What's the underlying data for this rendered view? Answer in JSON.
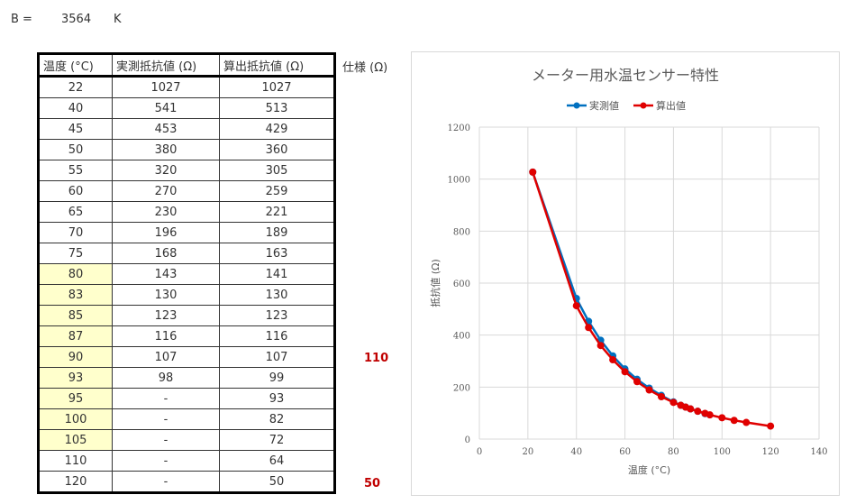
{
  "b_constant": {
    "label": "B =",
    "value": "3564",
    "unit": "K"
  },
  "table": {
    "headers": [
      "温度 (°C)",
      "実測抵抗値 (Ω)",
      "算出抵抗値 (Ω)"
    ],
    "spec_header": "仕様 (Ω)",
    "rows": [
      {
        "temp": "22",
        "measured": "1027",
        "calc": "1027",
        "hl": false
      },
      {
        "temp": "40",
        "measured": "541",
        "calc": "513",
        "hl": false
      },
      {
        "temp": "45",
        "measured": "453",
        "calc": "429",
        "hl": false
      },
      {
        "temp": "50",
        "measured": "380",
        "calc": "360",
        "hl": false
      },
      {
        "temp": "55",
        "measured": "320",
        "calc": "305",
        "hl": false
      },
      {
        "temp": "60",
        "measured": "270",
        "calc": "259",
        "hl": false
      },
      {
        "temp": "65",
        "measured": "230",
        "calc": "221",
        "hl": false
      },
      {
        "temp": "70",
        "measured": "196",
        "calc": "189",
        "hl": false
      },
      {
        "temp": "75",
        "measured": "168",
        "calc": "163",
        "hl": false
      },
      {
        "temp": "80",
        "measured": "143",
        "calc": "141",
        "hl": true
      },
      {
        "temp": "83",
        "measured": "130",
        "calc": "130",
        "hl": true
      },
      {
        "temp": "85",
        "measured": "123",
        "calc": "123",
        "hl": true
      },
      {
        "temp": "87",
        "measured": "116",
        "calc": "116",
        "hl": true
      },
      {
        "temp": "90",
        "measured": "107",
        "calc": "107",
        "hl": true,
        "spec": "110"
      },
      {
        "temp": "93",
        "measured": "98",
        "calc": "99",
        "hl": true
      },
      {
        "temp": "95",
        "measured": "-",
        "calc": "93",
        "hl": true
      },
      {
        "temp": "100",
        "measured": "-",
        "calc": "82",
        "hl": true
      },
      {
        "temp": "105",
        "measured": "-",
        "calc": "72",
        "hl": true
      },
      {
        "temp": "110",
        "measured": "-",
        "calc": "64",
        "hl": false
      },
      {
        "temp": "120",
        "measured": "-",
        "calc": "50",
        "hl": false,
        "spec": "50"
      }
    ]
  },
  "chart_data": {
    "type": "scatter",
    "title": "メーター用水温センサー特性",
    "xlabel": "温度 (°C)",
    "ylabel": "抵抗値 (Ω)",
    "xlim": [
      0,
      140
    ],
    "ylim": [
      0,
      1200
    ],
    "xticks": [
      0,
      20,
      40,
      60,
      80,
      100,
      120,
      140
    ],
    "yticks": [
      0,
      200,
      400,
      600,
      800,
      1000,
      1200
    ],
    "grid": true,
    "legend_position": "top",
    "series": [
      {
        "name": "実測値",
        "color": "#0070c0",
        "x": [
          22,
          40,
          45,
          50,
          55,
          60,
          65,
          70,
          75,
          80,
          83,
          85,
          87,
          90,
          93
        ],
        "y": [
          1027,
          541,
          453,
          380,
          320,
          270,
          230,
          196,
          168,
          143,
          130,
          123,
          116,
          107,
          98
        ]
      },
      {
        "name": "算出値",
        "color": "#e00000",
        "x": [
          22,
          40,
          45,
          50,
          55,
          60,
          65,
          70,
          75,
          80,
          83,
          85,
          87,
          90,
          93,
          95,
          100,
          105,
          110,
          120
        ],
        "y": [
          1027,
          513,
          429,
          360,
          305,
          259,
          221,
          189,
          163,
          141,
          130,
          123,
          116,
          107,
          99,
          93,
          82,
          72,
          64,
          50
        ]
      }
    ]
  }
}
